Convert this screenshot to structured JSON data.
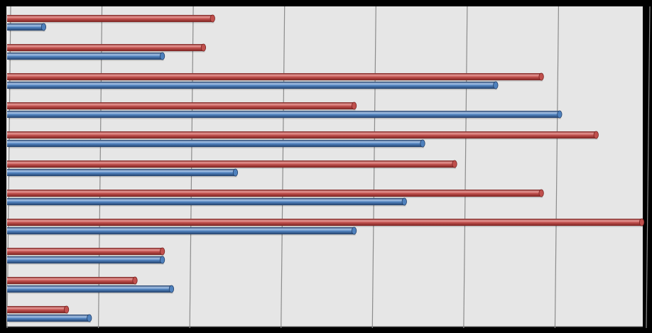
{
  "chart_data": {
    "type": "bar",
    "orientation": "horizontal",
    "style": "3d-cylinder",
    "categories": [
      "",
      "",
      "",
      "",
      "",
      "",
      "",
      "",
      "",
      "",
      ""
    ],
    "series": [
      {
        "values": [
          4.5,
          4.3,
          11.7,
          7.6,
          12.9,
          9.8,
          11.7,
          13.9,
          3.4,
          2.8,
          1.3
        ]
      },
      {
        "values": [
          0.8,
          3.4,
          10.7,
          12.1,
          9.1,
          5.0,
          8.7,
          7.6,
          3.4,
          3.6,
          1.8
        ]
      }
    ],
    "xlim": [
      0,
      14
    ],
    "gridlines": "vertical",
    "colors": {
      "series_1": "#c0504d",
      "series_1_light": "#e89a97",
      "series_1_dark": "#7a2220",
      "series_2": "#4f81bd",
      "series_2_light": "#a8c4e8",
      "series_2_dark": "#23406a",
      "plot_background": "#e6e6e6",
      "frame_background": "#000000",
      "gridline": "#8c8c8c"
    }
  }
}
